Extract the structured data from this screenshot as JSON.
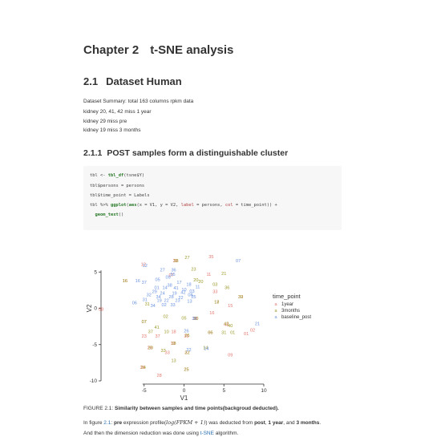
{
  "chapter": {
    "number": "Chapter 2",
    "title": "t-SNE analysis"
  },
  "section": {
    "number": "2.1",
    "title": "Dataset Human"
  },
  "summary_lines": [
    "Dataset Summary: total 163 columns rpkm data",
    "kidney 20, 41, 42 miss 1 year",
    "kidney 29 miss pre",
    "kidney 19 miss 3 months"
  ],
  "subsection": {
    "number": "2.1.1",
    "title": "POST samples form a distinguishable cluster"
  },
  "code": {
    "line1_a": "tbl <- ",
    "line1_fn": "tbl_df",
    "line1_b": "(tsne$Y)",
    "line2": "tbl$persons = persons",
    "line3": "tbl$time_point = Labels",
    "line4_a": "tbl %>% ",
    "line4_fn": "ggplot",
    "line4_b": "(",
    "line4_fn2": "aes",
    "line4_c": "(x = V1, y = V2, ",
    "line4_lab": "label",
    "line4_d": " = persons, ",
    "line4_col": "col",
    "line4_e": " = time_point)) +",
    "line5_fn": "geom_text",
    "line5_b": "()"
  },
  "chart_data": {
    "type": "scatter",
    "xlabel": "V1",
    "ylabel": "V2",
    "xlim": [
      -10,
      10
    ],
    "ylim": [
      -10,
      10
    ],
    "xticks": [
      -5,
      0,
      5,
      10
    ],
    "yticks": [
      -10,
      -5,
      0,
      5
    ],
    "legend": {
      "title": "time_point",
      "entries": [
        "1year",
        "3months",
        "baseline_post"
      ],
      "position": "right"
    },
    "series": [
      {
        "name": "1year",
        "color": "#e4776e",
        "points": [
          {
            "x": -5.1,
            "y": 6.1,
            "label": "12"
          },
          {
            "x": -1.1,
            "y": 6.6,
            "label": "39"
          },
          {
            "x": 3.4,
            "y": 7.1,
            "label": "35"
          },
          {
            "x": 3.1,
            "y": 4.7,
            "label": "11"
          },
          {
            "x": -7.4,
            "y": 3.8,
            "label": "16"
          },
          {
            "x": -1.6,
            "y": 4.6,
            "label": "07"
          },
          {
            "x": -10.4,
            "y": -0.1,
            "label": "08"
          },
          {
            "x": 3.9,
            "y": 2.3,
            "label": "33"
          },
          {
            "x": 4.1,
            "y": 0.9,
            "label": "17"
          },
          {
            "x": 7.1,
            "y": 1.6,
            "label": "32"
          },
          {
            "x": 3.5,
            "y": -0.6,
            "label": "16"
          },
          {
            "x": 5.8,
            "y": 0.4,
            "label": "15"
          },
          {
            "x": -5.0,
            "y": -1.8,
            "label": "07"
          },
          {
            "x": 1.4,
            "y": -1.4,
            "label": "38"
          },
          {
            "x": 5.3,
            "y": -2.2,
            "label": "48"
          },
          {
            "x": -5.0,
            "y": -3.8,
            "label": "23"
          },
          {
            "x": -3.3,
            "y": -3.8,
            "label": "37"
          },
          {
            "x": -1.3,
            "y": -3.2,
            "label": "18"
          },
          {
            "x": 0.3,
            "y": -3.8,
            "label": "35"
          },
          {
            "x": 3.3,
            "y": -3.3,
            "label": "66"
          },
          {
            "x": 8.6,
            "y": -3.0,
            "label": "02"
          },
          {
            "x": 7.8,
            "y": -3.5,
            "label": "01"
          },
          {
            "x": -4.3,
            "y": -5.4,
            "label": "29"
          },
          {
            "x": -2.1,
            "y": -6.1,
            "label": "33"
          },
          {
            "x": -1.4,
            "y": -4.8,
            "label": "19"
          },
          {
            "x": 0.4,
            "y": -6.1,
            "label": "32"
          },
          {
            "x": 5.8,
            "y": -6.4,
            "label": "09"
          },
          {
            "x": -5.2,
            "y": -8.1,
            "label": "28"
          },
          {
            "x": -3.1,
            "y": -9.2,
            "label": "28"
          },
          {
            "x": 0.3,
            "y": -8.4,
            "label": "25"
          }
        ]
      },
      {
        "name": "3months",
        "color": "#9c9a2a",
        "points": [
          {
            "x": -1.0,
            "y": 6.6,
            "label": "38"
          },
          {
            "x": 0.4,
            "y": 7.0,
            "label": "27"
          },
          {
            "x": 1.2,
            "y": 5.4,
            "label": "23"
          },
          {
            "x": 5.0,
            "y": 4.8,
            "label": "21"
          },
          {
            "x": -7.4,
            "y": 3.8,
            "label": "16"
          },
          {
            "x": 1.5,
            "y": 3.9,
            "label": "20"
          },
          {
            "x": 2.1,
            "y": 3.7,
            "label": "20"
          },
          {
            "x": 3.9,
            "y": 3.3,
            "label": "03"
          },
          {
            "x": 5.4,
            "y": 2.9,
            "label": "36"
          },
          {
            "x": 7.1,
            "y": 1.6,
            "label": "39"
          },
          {
            "x": 4.1,
            "y": 0.9,
            "label": "18"
          },
          {
            "x": -4.6,
            "y": 0.6,
            "label": "31"
          },
          {
            "x": -2.3,
            "y": -1.1,
            "label": "02"
          },
          {
            "x": 0.0,
            "y": -1.3,
            "label": "05"
          },
          {
            "x": 1.5,
            "y": -1.4,
            "label": "30"
          },
          {
            "x": -5.0,
            "y": -1.8,
            "label": "07"
          },
          {
            "x": 5.3,
            "y": -2.1,
            "label": "42"
          },
          {
            "x": 5.8,
            "y": -2.4,
            "label": "40"
          },
          {
            "x": -3.4,
            "y": -2.6,
            "label": "41"
          },
          {
            "x": -4.2,
            "y": -3.2,
            "label": "37"
          },
          {
            "x": -2.2,
            "y": -3.2,
            "label": "10"
          },
          {
            "x": 3.3,
            "y": -3.3,
            "label": "06"
          },
          {
            "x": 5.0,
            "y": -3.3,
            "label": "31"
          },
          {
            "x": 6.1,
            "y": -3.3,
            "label": "01"
          },
          {
            "x": 0.4,
            "y": -3.7,
            "label": "25"
          },
          {
            "x": -4.2,
            "y": -5.4,
            "label": "30"
          },
          {
            "x": -2.6,
            "y": -5.8,
            "label": "33"
          },
          {
            "x": 0.4,
            "y": -6.1,
            "label": "22"
          },
          {
            "x": 2.7,
            "y": -5.4,
            "label": "14"
          },
          {
            "x": -1.3,
            "y": -4.8,
            "label": "18"
          },
          {
            "x": -5.1,
            "y": -8.1,
            "label": "24"
          },
          {
            "x": -1.3,
            "y": -7.2,
            "label": "13"
          },
          {
            "x": 0.3,
            "y": -8.4,
            "label": "25"
          }
        ]
      },
      {
        "name": "baseline_post",
        "color": "#6b93e0",
        "points": [
          {
            "x": 6.8,
            "y": 6.6,
            "label": "07"
          },
          {
            "x": -4.9,
            "y": 5.9,
            "label": "12"
          },
          {
            "x": -2.7,
            "y": 5.3,
            "label": "27"
          },
          {
            "x": -1.3,
            "y": 5.3,
            "label": "36"
          },
          {
            "x": -2.0,
            "y": 4.3,
            "label": "09"
          },
          {
            "x": -1.4,
            "y": 4.7,
            "label": "55"
          },
          {
            "x": -5.8,
            "y": 3.8,
            "label": "16"
          },
          {
            "x": -5.0,
            "y": 3.6,
            "label": "37"
          },
          {
            "x": -3.3,
            "y": 4.0,
            "label": "05"
          },
          {
            "x": -0.6,
            "y": 3.6,
            "label": "17"
          },
          {
            "x": 0.6,
            "y": 3.3,
            "label": "18"
          },
          {
            "x": 1.7,
            "y": 3.0,
            "label": "11"
          },
          {
            "x": -3.4,
            "y": 2.9,
            "label": "01"
          },
          {
            "x": -2.4,
            "y": 2.9,
            "label": "14"
          },
          {
            "x": -1.8,
            "y": 3.2,
            "label": "38"
          },
          {
            "x": -1.0,
            "y": 2.8,
            "label": "41"
          },
          {
            "x": 0.0,
            "y": 2.6,
            "label": "10"
          },
          {
            "x": 1.0,
            "y": 2.4,
            "label": "03"
          },
          {
            "x": -3.7,
            "y": 2.3,
            "label": "29"
          },
          {
            "x": -2.7,
            "y": 2.1,
            "label": "24"
          },
          {
            "x": -1.2,
            "y": 2.1,
            "label": "19"
          },
          {
            "x": -0.1,
            "y": 2.2,
            "label": "42"
          },
          {
            "x": 0.8,
            "y": 1.9,
            "label": "08"
          },
          {
            "x": -4.4,
            "y": 1.9,
            "label": "32"
          },
          {
            "x": -3.2,
            "y": 1.6,
            "label": "34"
          },
          {
            "x": -1.6,
            "y": 1.6,
            "label": "28"
          },
          {
            "x": -0.4,
            "y": 1.5,
            "label": "22"
          },
          {
            "x": 1.2,
            "y": 1.6,
            "label": "25"
          },
          {
            "x": -4.9,
            "y": 1.2,
            "label": "31"
          },
          {
            "x": -3.1,
            "y": 1.1,
            "label": "19"
          },
          {
            "x": -2.2,
            "y": 1.1,
            "label": "22"
          },
          {
            "x": -0.8,
            "y": 1.1,
            "label": "23"
          },
          {
            "x": 0.7,
            "y": 1.0,
            "label": "13"
          },
          {
            "x": -6.2,
            "y": 0.8,
            "label": "06"
          },
          {
            "x": -3.9,
            "y": 0.4,
            "label": "34"
          },
          {
            "x": -2.5,
            "y": 0.5,
            "label": "02"
          },
          {
            "x": -1.4,
            "y": 0.5,
            "label": "33"
          },
          {
            "x": 1.3,
            "y": -1.4,
            "label": "36"
          },
          {
            "x": 9.2,
            "y": -2.1,
            "label": "21"
          },
          {
            "x": 0.3,
            "y": -3.1,
            "label": "26"
          },
          {
            "x": 0.6,
            "y": -5.7,
            "label": "22"
          },
          {
            "x": 2.8,
            "y": -5.5,
            "label": "14"
          }
        ]
      }
    ]
  },
  "caption": {
    "label": "FIGURE 2.1:",
    "text": "Similarity between samples and time points(backgroud deducted)."
  },
  "body": {
    "p1_a": "In figure ",
    "p1_ref": "2.1",
    "p1_b": ": ",
    "p1_bold1": "pre",
    "p1_c": " expression profile(",
    "p1_math": "log(FPKM + 1)",
    "p1_d": ") was deducted from ",
    "p1_bold2": "post",
    "p1_e": ", ",
    "p1_bold3": "1 year",
    "p1_f": ", and ",
    "p1_bold4": "3 months",
    "p1_g": ".",
    "p2_a": "And then the dimension reduction was done using ",
    "p2_link": "t-SNE",
    "p2_b": " algorithm."
  }
}
